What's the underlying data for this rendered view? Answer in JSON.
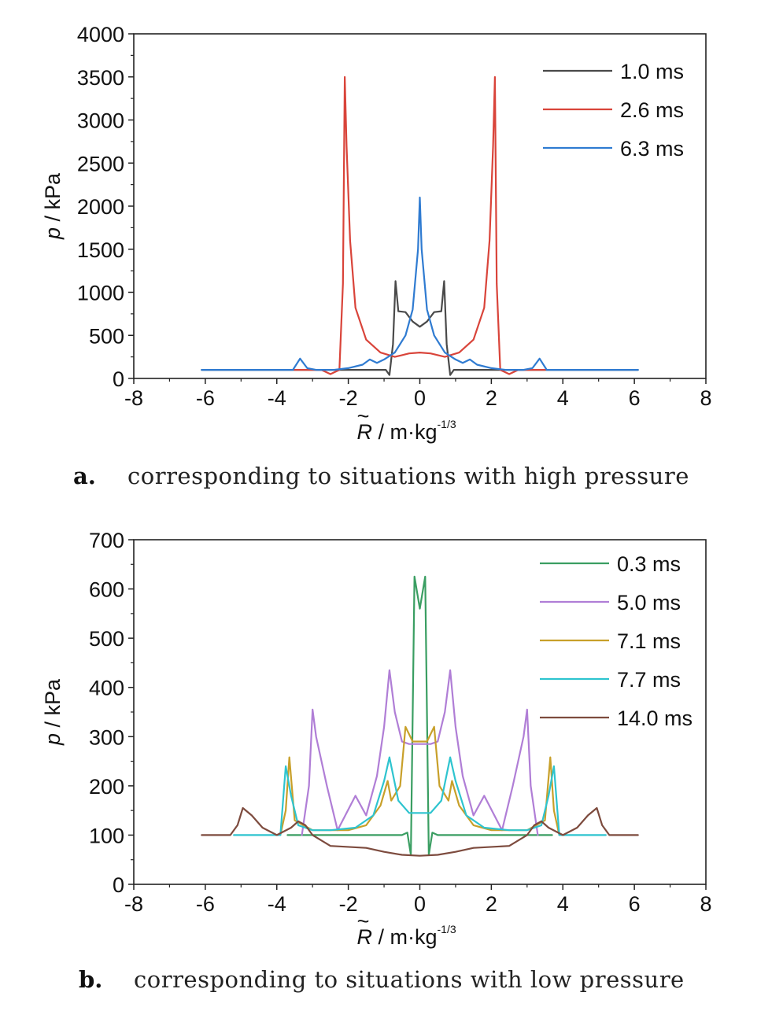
{
  "chart_data": [
    {
      "type": "line",
      "panel": "a",
      "caption": {
        "letter": "a.",
        "text": "corresponding to situations with high pressure"
      },
      "xlabel": {
        "symbol": "R",
        "accent": "~",
        "unit": " / m·kg",
        "exp": "-1/3"
      },
      "ylabel": {
        "symbol": "p",
        "unit": " / kPa"
      },
      "xlim": [
        -8,
        8
      ],
      "ylim": [
        0,
        4000
      ],
      "xticks": [
        -8,
        -6,
        -4,
        -2,
        0,
        2,
        4,
        6,
        8
      ],
      "yticks": [
        0,
        500,
        1000,
        1500,
        2000,
        2500,
        3000,
        3500,
        4000
      ],
      "legend_position": "top-right",
      "grid": false,
      "series": [
        {
          "name": "1.0 ms",
          "color": "#4a4a4a",
          "x": [
            -6.1,
            -0.95,
            -0.85,
            -0.75,
            -0.68,
            -0.6,
            -0.4,
            -0.2,
            0,
            0.2,
            0.4,
            0.6,
            0.68,
            0.75,
            0.85,
            0.95,
            6.1
          ],
          "y": [
            100,
            100,
            40,
            400,
            1130,
            780,
            770,
            660,
            600,
            660,
            770,
            780,
            1130,
            400,
            40,
            100,
            100
          ]
        },
        {
          "name": "2.6 ms",
          "color": "#d9443a",
          "x": [
            -3.5,
            -2.75,
            -2.5,
            -2.25,
            -2.15,
            -2.1,
            -2.05,
            -1.95,
            -1.8,
            -1.5,
            -1.1,
            -0.7,
            -0.3,
            0,
            0.3,
            0.7,
            1.1,
            1.5,
            1.8,
            1.95,
            2.05,
            2.1,
            2.15,
            2.25,
            2.5,
            2.75,
            3.5
          ],
          "y": [
            100,
            100,
            50,
            100,
            1100,
            3500,
            2700,
            1600,
            820,
            450,
            300,
            250,
            290,
            300,
            290,
            250,
            300,
            450,
            820,
            1600,
            2700,
            3500,
            1100,
            100,
            50,
            100,
            100
          ]
        },
        {
          "name": "6.3 ms",
          "color": "#2f7bd1",
          "x": [
            -6.1,
            -3.55,
            -3.35,
            -3.15,
            -2.9,
            -2.4,
            -2.0,
            -1.6,
            -1.4,
            -1.2,
            -1.0,
            -0.7,
            -0.4,
            -0.2,
            -0.05,
            0,
            0.05,
            0.2,
            0.4,
            0.7,
            1.0,
            1.2,
            1.4,
            1.6,
            2.0,
            2.4,
            2.9,
            3.15,
            3.35,
            3.55,
            6.1
          ],
          "y": [
            100,
            100,
            230,
            120,
            100,
            100,
            120,
            160,
            220,
            180,
            220,
            300,
            500,
            800,
            1500,
            2100,
            1500,
            800,
            500,
            300,
            220,
            180,
            220,
            160,
            120,
            100,
            100,
            120,
            230,
            100,
            100
          ]
        }
      ]
    },
    {
      "type": "line",
      "panel": "b",
      "caption": {
        "letter": "b.",
        "text": "corresponding to situations with low pressure"
      },
      "xlabel": {
        "symbol": "R",
        "accent": "~",
        "unit": " / m·kg",
        "exp": "-1/3"
      },
      "ylabel": {
        "symbol": "p",
        "unit": " / kPa"
      },
      "xlim": [
        -8,
        8
      ],
      "ylim": [
        0,
        700
      ],
      "xticks": [
        -8,
        -6,
        -4,
        -2,
        0,
        2,
        4,
        6,
        8
      ],
      "yticks": [
        0,
        100,
        200,
        300,
        400,
        500,
        600,
        700
      ],
      "legend_position": "top-right",
      "grid": false,
      "series": [
        {
          "name": "0.3 ms",
          "color": "#3a9e62",
          "x": [
            -3.7,
            -0.5,
            -0.35,
            -0.25,
            -0.15,
            0,
            0.15,
            0.25,
            0.35,
            0.5,
            3.7
          ],
          "y": [
            100,
            100,
            105,
            60,
            625,
            560,
            625,
            60,
            105,
            100,
            100
          ]
        },
        {
          "name": "5.0 ms",
          "color": "#b07ed6",
          "x": [
            -3.3,
            -3.1,
            -3.0,
            -2.9,
            -2.6,
            -2.3,
            -1.8,
            -1.5,
            -1.2,
            -1.0,
            -0.85,
            -0.7,
            -0.5,
            -0.3,
            0,
            0.3,
            0.5,
            0.7,
            0.85,
            1.0,
            1.2,
            1.5,
            1.8,
            2.3,
            2.6,
            2.9,
            3.0,
            3.1,
            3.3
          ],
          "y": [
            100,
            200,
            355,
            300,
            200,
            110,
            180,
            140,
            220,
            320,
            435,
            350,
            290,
            285,
            285,
            285,
            290,
            350,
            435,
            320,
            220,
            140,
            180,
            110,
            200,
            300,
            355,
            200,
            100
          ]
        },
        {
          "name": "7.1 ms",
          "color": "#c8a02a",
          "x": [
            -3.9,
            -3.75,
            -3.65,
            -3.5,
            -3.0,
            -2.0,
            -1.5,
            -1.1,
            -0.9,
            -0.8,
            -0.55,
            -0.4,
            -0.2,
            0,
            0.2,
            0.4,
            0.55,
            0.8,
            0.9,
            1.1,
            1.5,
            2.0,
            3.0,
            3.5,
            3.65,
            3.75,
            3.9
          ],
          "y": [
            100,
            150,
            258,
            130,
            110,
            110,
            120,
            160,
            210,
            170,
            200,
            320,
            290,
            290,
            290,
            320,
            200,
            170,
            210,
            160,
            120,
            110,
            110,
            130,
            258,
            150,
            100
          ]
        },
        {
          "name": "7.7 ms",
          "color": "#2ec4cf",
          "x": [
            -5.2,
            -3.9,
            -3.75,
            -3.6,
            -3.4,
            -3.0,
            -2.5,
            -1.8,
            -1.3,
            -1.0,
            -0.85,
            -0.6,
            -0.3,
            0,
            0.3,
            0.6,
            0.85,
            1.0,
            1.3,
            1.8,
            2.5,
            3.0,
            3.4,
            3.6,
            3.75,
            3.9,
            5.2
          ],
          "y": [
            100,
            100,
            240,
            180,
            120,
            110,
            110,
            115,
            140,
            210,
            258,
            170,
            145,
            145,
            145,
            170,
            258,
            210,
            140,
            115,
            110,
            110,
            120,
            180,
            240,
            100,
            100
          ]
        },
        {
          "name": "14.0 ms",
          "color": "#7d4b3e",
          "x": [
            -6.1,
            -5.3,
            -5.1,
            -4.95,
            -4.7,
            -4.4,
            -4.0,
            -3.6,
            -3.4,
            -3.2,
            -3.0,
            -2.5,
            -1.5,
            -1.0,
            -0.5,
            0,
            0.5,
            1.0,
            1.5,
            2.5,
            3.0,
            3.2,
            3.4,
            3.6,
            4.0,
            4.4,
            4.7,
            4.95,
            5.1,
            5.3,
            6.1
          ],
          "y": [
            100,
            100,
            120,
            155,
            140,
            115,
            100,
            115,
            128,
            120,
            100,
            78,
            74,
            66,
            60,
            58,
            60,
            66,
            74,
            78,
            100,
            120,
            128,
            115,
            100,
            115,
            140,
            155,
            120,
            100,
            100
          ]
        }
      ]
    }
  ]
}
